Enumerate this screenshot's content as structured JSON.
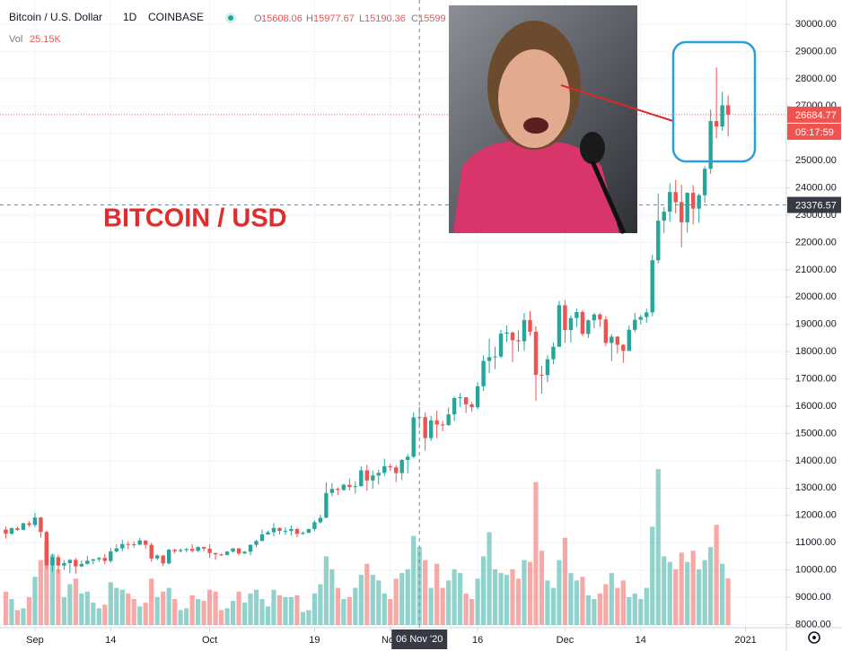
{
  "chart_data": {
    "type": "candlestick",
    "title": "Bitcoin / U.S. Dollar",
    "interval": "1D",
    "exchange": "COINBASE",
    "legend": {
      "open_label": "O",
      "open": 15608.06,
      "high_label": "H",
      "high": 15977.67,
      "low_label": "L",
      "low": 15190.36,
      "close_label": "C",
      "close": 15599
    },
    "volume_label": "Vol",
    "volume_last": "25.15K",
    "annotation": "BITCOIN / USD",
    "last_price": 26684.77,
    "countdown": "05:17:59",
    "crosshair": {
      "date": "2020-11-06",
      "date_label": "06 Nov '20",
      "price": 23376.57
    },
    "up_color": "#26a69a",
    "down_color": "#ef5350",
    "grid": true,
    "xlim": [
      "2020-08-26",
      "2021-01-08"
    ],
    "xticks": [
      {
        "value": "2020-09-01",
        "label": "Sep"
      },
      {
        "value": "2020-09-14",
        "label": "14"
      },
      {
        "value": "2020-10-01",
        "label": "Oct"
      },
      {
        "value": "2020-10-19",
        "label": "19"
      },
      {
        "value": "2020-11-01",
        "label": "Nov"
      },
      {
        "value": "2020-11-16",
        "label": "16"
      },
      {
        "value": "2020-12-01",
        "label": "Dec"
      },
      {
        "value": "2020-12-14",
        "label": "14"
      },
      {
        "value": "2021-01-01",
        "label": "2021"
      }
    ],
    "ylim": [
      7884,
      30887
    ],
    "yticks": [
      {
        "value": 30000,
        "label": "30000.00"
      },
      {
        "value": 29000,
        "label": "29000.00"
      },
      {
        "value": 28000,
        "label": "28000.00"
      },
      {
        "value": 27000,
        "label": "27000.00"
      },
      {
        "value": 26000,
        "label": "26000.00"
      },
      {
        "value": 25000,
        "label": "25000.00"
      },
      {
        "value": 24000,
        "label": "24000.00"
      },
      {
        "value": 23000,
        "label": "23000.00"
      },
      {
        "value": 22000,
        "label": "22000.00"
      },
      {
        "value": 21000,
        "label": "21000.00"
      },
      {
        "value": 20000,
        "label": "20000.00"
      },
      {
        "value": 19000,
        "label": "19000.00"
      },
      {
        "value": 18000,
        "label": "18000.00"
      },
      {
        "value": 17000,
        "label": "17000.00"
      },
      {
        "value": 16000,
        "label": "16000.00"
      },
      {
        "value": 15000,
        "label": "15000.00"
      },
      {
        "value": 14000,
        "label": "14000.00"
      },
      {
        "value": 13000,
        "label": "13000.00"
      },
      {
        "value": 12000,
        "label": "12000.00"
      },
      {
        "value": 11000,
        "label": "11000.00"
      },
      {
        "value": 10000,
        "label": "10000.00"
      },
      {
        "value": 9000,
        "label": "9000.00"
      },
      {
        "value": 8000,
        "label": "8000.00"
      }
    ],
    "vlim": [
      0,
      100
    ],
    "x": [
      "2020-08-27",
      "2020-08-28",
      "2020-08-29",
      "2020-08-30",
      "2020-08-31",
      "2020-09-01",
      "2020-09-02",
      "2020-09-03",
      "2020-09-04",
      "2020-09-05",
      "2020-09-06",
      "2020-09-07",
      "2020-09-08",
      "2020-09-09",
      "2020-09-10",
      "2020-09-11",
      "2020-09-12",
      "2020-09-13",
      "2020-09-14",
      "2020-09-15",
      "2020-09-16",
      "2020-09-17",
      "2020-09-18",
      "2020-09-19",
      "2020-09-20",
      "2020-09-21",
      "2020-09-22",
      "2020-09-23",
      "2020-09-24",
      "2020-09-25",
      "2020-09-26",
      "2020-09-27",
      "2020-09-28",
      "2020-09-29",
      "2020-09-30",
      "2020-10-01",
      "2020-10-02",
      "2020-10-03",
      "2020-10-04",
      "2020-10-05",
      "2020-10-06",
      "2020-10-07",
      "2020-10-08",
      "2020-10-09",
      "2020-10-10",
      "2020-10-11",
      "2020-10-12",
      "2020-10-13",
      "2020-10-14",
      "2020-10-15",
      "2020-10-16",
      "2020-10-17",
      "2020-10-18",
      "2020-10-19",
      "2020-10-20",
      "2020-10-21",
      "2020-10-22",
      "2020-10-23",
      "2020-10-24",
      "2020-10-25",
      "2020-10-26",
      "2020-10-27",
      "2020-10-28",
      "2020-10-29",
      "2020-10-30",
      "2020-10-31",
      "2020-11-01",
      "2020-11-02",
      "2020-11-03",
      "2020-11-04",
      "2020-11-05",
      "2020-11-06",
      "2020-11-07",
      "2020-11-08",
      "2020-11-09",
      "2020-11-10",
      "2020-11-11",
      "2020-11-12",
      "2020-11-13",
      "2020-11-14",
      "2020-11-15",
      "2020-11-16",
      "2020-11-17",
      "2020-11-18",
      "2020-11-19",
      "2020-11-20",
      "2020-11-21",
      "2020-11-22",
      "2020-11-23",
      "2020-11-24",
      "2020-11-25",
      "2020-11-26",
      "2020-11-27",
      "2020-11-28",
      "2020-11-29",
      "2020-11-30",
      "2020-12-01",
      "2020-12-02",
      "2020-12-03",
      "2020-12-04",
      "2020-12-05",
      "2020-12-06",
      "2020-12-07",
      "2020-12-08",
      "2020-12-09",
      "2020-12-10",
      "2020-12-11",
      "2020-12-12",
      "2020-12-13",
      "2020-12-14",
      "2020-12-15",
      "2020-12-16",
      "2020-12-17",
      "2020-12-18",
      "2020-12-19",
      "2020-12-20",
      "2020-12-21",
      "2020-12-22",
      "2020-12-23",
      "2020-12-24",
      "2020-12-25",
      "2020-12-26",
      "2020-12-27",
      "2020-12-28",
      "2020-12-29"
    ],
    "ohlcv": [
      [
        11480,
        11590,
        11150,
        11330,
        18
      ],
      [
        11330,
        11550,
        11280,
        11530,
        14
      ],
      [
        11530,
        11590,
        11430,
        11470,
        8
      ],
      [
        11470,
        11730,
        11460,
        11710,
        9
      ],
      [
        11710,
        11790,
        11580,
        11650,
        15
      ],
      [
        11650,
        12090,
        11570,
        11920,
        26
      ],
      [
        11920,
        11950,
        11180,
        11390,
        35
      ],
      [
        11390,
        11450,
        10050,
        10170,
        45
      ],
      [
        10170,
        10600,
        9950,
        10470,
        38
      ],
      [
        10470,
        10560,
        9880,
        10160,
        30
      ],
      [
        10160,
        10360,
        10000,
        10250,
        15
      ],
      [
        10250,
        10400,
        9880,
        10370,
        22
      ],
      [
        10370,
        10440,
        9870,
        10130,
        25
      ],
      [
        10130,
        10350,
        10100,
        10220,
        17
      ],
      [
        10220,
        10510,
        10200,
        10340,
        18
      ],
      [
        10340,
        10410,
        10200,
        10390,
        12
      ],
      [
        10390,
        10480,
        10300,
        10440,
        9
      ],
      [
        10440,
        10580,
        10210,
        10330,
        11
      ],
      [
        10330,
        10800,
        10270,
        10680,
        23
      ],
      [
        10680,
        10940,
        10630,
        10790,
        20
      ],
      [
        10790,
        11100,
        10680,
        10950,
        19
      ],
      [
        10950,
        11050,
        10760,
        10940,
        17
      ],
      [
        10940,
        11040,
        10820,
        10930,
        14
      ],
      [
        10930,
        11180,
        10890,
        11080,
        10
      ],
      [
        11080,
        11080,
        10780,
        10920,
        12
      ],
      [
        10920,
        10990,
        10300,
        10420,
        25
      ],
      [
        10420,
        10570,
        10360,
        10530,
        15
      ],
      [
        10530,
        10540,
        10140,
        10240,
        18
      ],
      [
        10240,
        10780,
        10200,
        10740,
        20
      ],
      [
        10740,
        10770,
        10600,
        10690,
        14
      ],
      [
        10690,
        10790,
        10640,
        10730,
        8
      ],
      [
        10730,
        10800,
        10640,
        10770,
        9
      ],
      [
        10770,
        10950,
        10640,
        10700,
        16
      ],
      [
        10700,
        10860,
        10660,
        10840,
        14
      ],
      [
        10840,
        10850,
        10680,
        10780,
        13
      ],
      [
        10780,
        10940,
        10440,
        10620,
        19
      ],
      [
        10620,
        10630,
        10370,
        10570,
        18
      ],
      [
        10570,
        10600,
        10510,
        10550,
        8
      ],
      [
        10550,
        10700,
        10530,
        10670,
        9
      ],
      [
        10670,
        10800,
        10640,
        10790,
        13
      ],
      [
        10790,
        10800,
        10540,
        10600,
        18
      ],
      [
        10600,
        10690,
        10600,
        10670,
        12
      ],
      [
        10670,
        10940,
        10540,
        10920,
        17
      ],
      [
        10920,
        11100,
        10830,
        11060,
        19
      ],
      [
        11060,
        11480,
        11060,
        11300,
        14
      ],
      [
        11300,
        11440,
        11290,
        11380,
        10
      ],
      [
        11380,
        11720,
        11230,
        11540,
        19
      ],
      [
        11540,
        11560,
        11300,
        11430,
        16
      ],
      [
        11430,
        11560,
        11280,
        11430,
        15
      ],
      [
        11430,
        11630,
        11270,
        11500,
        15
      ],
      [
        11500,
        11540,
        11200,
        11320,
        16
      ],
      [
        11320,
        11410,
        11290,
        11360,
        7
      ],
      [
        11360,
        11520,
        11350,
        11500,
        8
      ],
      [
        11500,
        11820,
        11420,
        11750,
        17
      ],
      [
        11750,
        12020,
        11690,
        11910,
        22
      ],
      [
        11910,
        13220,
        11900,
        12820,
        37
      ],
      [
        12820,
        13180,
        12700,
        12970,
        30
      ],
      [
        12970,
        13030,
        12740,
        12930,
        20
      ],
      [
        12930,
        13160,
        12900,
        13120,
        14
      ],
      [
        13120,
        13350,
        12910,
        13040,
        15
      ],
      [
        13040,
        13240,
        12800,
        13070,
        20
      ],
      [
        13070,
        13800,
        13060,
        13650,
        27
      ],
      [
        13650,
        13850,
        12900,
        13280,
        33
      ],
      [
        13280,
        13640,
        12980,
        13460,
        27
      ],
      [
        13460,
        13680,
        13130,
        13560,
        24
      ],
      [
        13560,
        14080,
        13450,
        13800,
        17
      ],
      [
        13800,
        13890,
        13630,
        13760,
        14
      ],
      [
        13760,
        13840,
        13220,
        13550,
        25
      ],
      [
        13550,
        14070,
        13300,
        14030,
        28
      ],
      [
        14030,
        14250,
        13540,
        14150,
        30
      ],
      [
        14150,
        15770,
        14100,
        15590,
        48
      ],
      [
        15590,
        15980,
        15190,
        15600,
        42
      ],
      [
        15600,
        15770,
        14370,
        14830,
        35
      ],
      [
        14830,
        15650,
        14730,
        15480,
        20
      ],
      [
        15480,
        15840,
        14830,
        15330,
        33
      ],
      [
        15330,
        15460,
        15080,
        15310,
        20
      ],
      [
        15310,
        15950,
        15280,
        15700,
        24
      ],
      [
        15700,
        16350,
        15460,
        16300,
        30
      ],
      [
        16300,
        16480,
        15970,
        16330,
        28
      ],
      [
        16330,
        16330,
        15750,
        16070,
        17
      ],
      [
        16070,
        16160,
        15800,
        15960,
        14
      ],
      [
        15960,
        16880,
        15890,
        16730,
        25
      ],
      [
        16730,
        17860,
        16560,
        17660,
        37
      ],
      [
        17660,
        18480,
        17210,
        17800,
        50
      ],
      [
        17800,
        18180,
        17360,
        17820,
        30
      ],
      [
        17820,
        18800,
        17760,
        18660,
        28
      ],
      [
        18660,
        18960,
        18350,
        18700,
        27
      ],
      [
        18700,
        18740,
        17620,
        18420,
        30
      ],
      [
        18420,
        18780,
        18000,
        18380,
        25
      ],
      [
        18380,
        19420,
        18030,
        19160,
        35
      ],
      [
        19160,
        19490,
        18580,
        18730,
        34
      ],
      [
        18730,
        18930,
        16200,
        17150,
        77
      ],
      [
        17150,
        17480,
        16460,
        17140,
        40
      ],
      [
        17140,
        17870,
        16880,
        17720,
        24
      ],
      [
        17720,
        18340,
        17540,
        18180,
        20
      ],
      [
        18180,
        19860,
        18180,
        19700,
        35
      ],
      [
        19700,
        19890,
        18320,
        18790,
        47
      ],
      [
        18790,
        19330,
        18340,
        19230,
        28
      ],
      [
        19230,
        19580,
        18900,
        19450,
        24
      ],
      [
        19450,
        19520,
        18570,
        18650,
        26
      ],
      [
        18650,
        19180,
        18500,
        19150,
        16
      ],
      [
        19150,
        19420,
        18860,
        19360,
        14
      ],
      [
        19360,
        19420,
        18900,
        19180,
        17
      ],
      [
        19180,
        19300,
        18200,
        18320,
        22
      ],
      [
        18320,
        18640,
        17650,
        18550,
        28
      ],
      [
        18550,
        18560,
        17930,
        18250,
        20
      ],
      [
        18250,
        18280,
        17580,
        18030,
        24
      ],
      [
        18030,
        18950,
        18020,
        18800,
        15
      ],
      [
        18800,
        19420,
        18710,
        19170,
        17
      ],
      [
        19170,
        19350,
        19000,
        19270,
        14
      ],
      [
        19270,
        19570,
        19050,
        19440,
        20
      ],
      [
        19440,
        21560,
        19300,
        21350,
        53
      ],
      [
        21350,
        23800,
        21230,
        22800,
        84
      ],
      [
        22800,
        23300,
        22350,
        23130,
        37
      ],
      [
        23130,
        24170,
        22760,
        23850,
        34
      ],
      [
        23850,
        24290,
        23070,
        23480,
        30
      ],
      [
        23480,
        24120,
        21820,
        22740,
        39
      ],
      [
        22740,
        23840,
        22360,
        23820,
        34
      ],
      [
        23820,
        24100,
        22660,
        23240,
        40
      ],
      [
        23240,
        23790,
        22720,
        23730,
        30
      ],
      [
        23730,
        24790,
        23450,
        24700,
        35
      ],
      [
        24700,
        26870,
        24520,
        26450,
        42
      ],
      [
        26450,
        28420,
        25820,
        26250,
        54
      ],
      [
        26250,
        27520,
        26100,
        27030,
        33
      ],
      [
        27030,
        27390,
        25880,
        26684.77,
        25.15
      ]
    ]
  }
}
